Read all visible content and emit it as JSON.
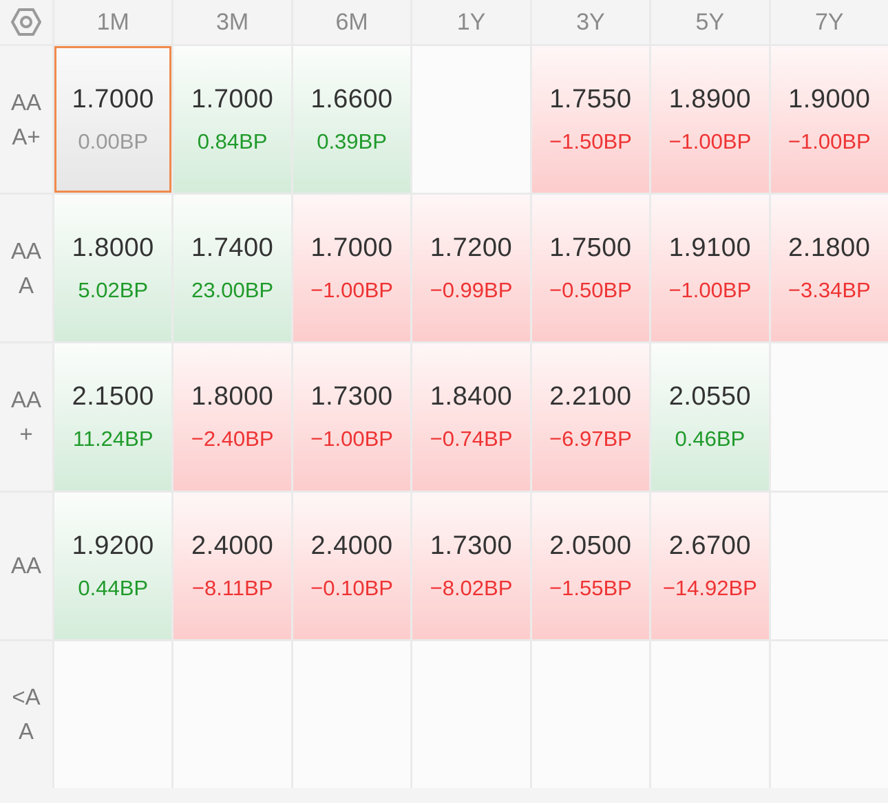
{
  "settings_icon": "hexagon-gear-icon",
  "columns": [
    "1M",
    "3M",
    "6M",
    "1Y",
    "3Y",
    "5Y",
    "7Y"
  ],
  "colors": {
    "up": "#1f9a2a",
    "down": "#ee3333",
    "flat": "#9a9a9a",
    "selected_border": "#f08a4b"
  },
  "selected": {
    "row": 0,
    "col": 0
  },
  "rows": [
    {
      "label": "AAA+",
      "cells": [
        {
          "value": "1.7000",
          "change": "0.00BP",
          "trend": "flat"
        },
        {
          "value": "1.7000",
          "change": "0.84BP",
          "trend": "up"
        },
        {
          "value": "1.6600",
          "change": "0.39BP",
          "trend": "up"
        },
        null,
        {
          "value": "1.7550",
          "change": "−1.50BP",
          "trend": "down"
        },
        {
          "value": "1.8900",
          "change": "−1.00BP",
          "trend": "down"
        },
        {
          "value": "1.9000",
          "change": "−1.00BP",
          "trend": "down"
        }
      ]
    },
    {
      "label": "AAA",
      "cells": [
        {
          "value": "1.8000",
          "change": "5.02BP",
          "trend": "up"
        },
        {
          "value": "1.7400",
          "change": "23.00BP",
          "trend": "up"
        },
        {
          "value": "1.7000",
          "change": "−1.00BP",
          "trend": "down"
        },
        {
          "value": "1.7200",
          "change": "−0.99BP",
          "trend": "down"
        },
        {
          "value": "1.7500",
          "change": "−0.50BP",
          "trend": "down"
        },
        {
          "value": "1.9100",
          "change": "−1.00BP",
          "trend": "down"
        },
        {
          "value": "2.1800",
          "change": "−3.34BP",
          "trend": "down"
        }
      ]
    },
    {
      "label": "AA+",
      "cells": [
        {
          "value": "2.1500",
          "change": "11.24BP",
          "trend": "up"
        },
        {
          "value": "1.8000",
          "change": "−2.40BP",
          "trend": "down"
        },
        {
          "value": "1.7300",
          "change": "−1.00BP",
          "trend": "down"
        },
        {
          "value": "1.8400",
          "change": "−0.74BP",
          "trend": "down"
        },
        {
          "value": "2.2100",
          "change": "−6.97BP",
          "trend": "down"
        },
        {
          "value": "2.0550",
          "change": "0.46BP",
          "trend": "up"
        },
        null
      ]
    },
    {
      "label": "AA",
      "cells": [
        {
          "value": "1.9200",
          "change": "0.44BP",
          "trend": "up"
        },
        {
          "value": "2.4000",
          "change": "−8.11BP",
          "trend": "down"
        },
        {
          "value": "2.4000",
          "change": "−0.10BP",
          "trend": "down"
        },
        {
          "value": "1.7300",
          "change": "−8.02BP",
          "trend": "down"
        },
        {
          "value": "2.0500",
          "change": "−1.55BP",
          "trend": "down"
        },
        {
          "value": "2.6700",
          "change": "−14.92BP",
          "trend": "down"
        },
        null
      ]
    },
    {
      "label": "<AA",
      "cells": [
        null,
        null,
        null,
        null,
        null,
        null,
        null
      ]
    }
  ]
}
